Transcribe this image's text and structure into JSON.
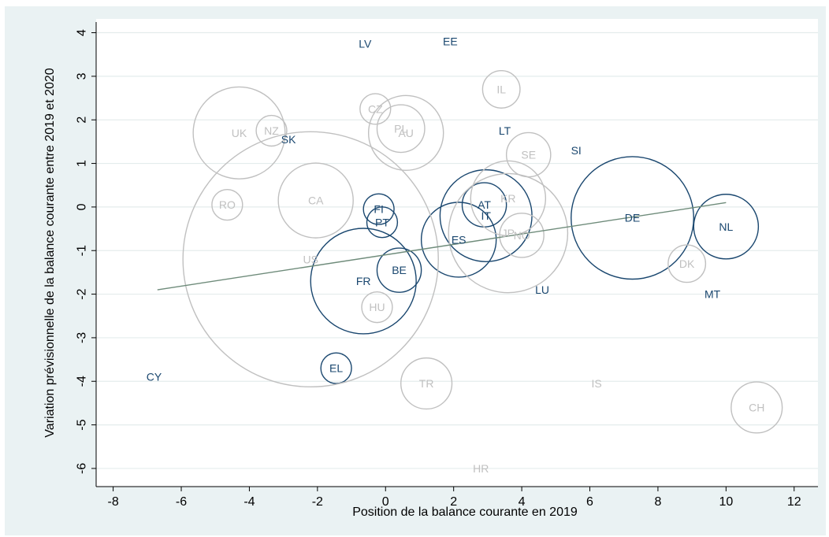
{
  "chart_data": {
    "type": "scatter",
    "title": "",
    "xlabel": "Position de la balance courante en 2019",
    "ylabel": "Variation prévisionnelle de la balance courante entre 2019 et 2020",
    "xlim": [
      -8.5,
      12.7
    ],
    "ylim": [
      -6.2,
      4.1
    ],
    "x_ticks": [
      -8,
      -6,
      -4,
      -2,
      0,
      2,
      4,
      6,
      8,
      10,
      12
    ],
    "y_ticks": [
      4,
      3,
      2,
      1,
      0,
      -1,
      -2,
      -3,
      -4,
      -5,
      -6
    ],
    "grid": true,
    "legend": "none",
    "colors": {
      "background": "#ffffff",
      "outer_background": "#eaf2f3",
      "euro_area": "#1a476f",
      "other": "#c0c0c0",
      "fit_line": "#6e8b7a",
      "grid": "#e4ecec"
    },
    "fit_line": {
      "x": [
        -6.7,
        10
      ],
      "y": [
        -1.9,
        0.1
      ]
    },
    "series": [
      {
        "name": "",
        "color": "#1a476f",
        "points": [
          {
            "label": "LV",
            "x": -0.6,
            "y": 3.75,
            "size": 0
          },
          {
            "label": "LT",
            "x": 3.5,
            "y": 1.75,
            "size": 0
          },
          {
            "label": "EE",
            "x": 1.9,
            "y": 3.8,
            "size": 0
          },
          {
            "label": "SK",
            "x": -2.85,
            "y": 1.55,
            "size": 0
          },
          {
            "label": "SI",
            "x": 5.6,
            "y": 1.3,
            "size": 0
          },
          {
            "label": "FI",
            "x": -0.2,
            "y": -0.05,
            "size": 0.9
          },
          {
            "label": "PT",
            "x": -0.1,
            "y": -0.35,
            "size": 0.9
          },
          {
            "label": "AT",
            "x": 2.9,
            "y": 0.05,
            "size": 1.3
          },
          {
            "label": "IT",
            "x": 2.95,
            "y": -0.2,
            "size": 2.7
          },
          {
            "label": "ES",
            "x": 2.15,
            "y": -0.75,
            "size": 2.2
          },
          {
            "label": "DE",
            "x": 7.25,
            "y": -0.25,
            "size": 3.6
          },
          {
            "label": "NL",
            "x": 10.0,
            "y": -0.45,
            "size": 1.9
          },
          {
            "label": "BE",
            "x": 0.4,
            "y": -1.45,
            "size": 1.3
          },
          {
            "label": "FR",
            "x": -0.65,
            "y": -1.7,
            "size": 3.1
          },
          {
            "label": "LU",
            "x": 4.6,
            "y": -1.9,
            "size": 0
          },
          {
            "label": "MT",
            "x": 9.6,
            "y": -2.0,
            "size": 0
          },
          {
            "label": "EL",
            "x": -1.45,
            "y": -3.7,
            "size": 0.9
          },
          {
            "label": "CY",
            "x": -6.8,
            "y": -3.9,
            "size": 0
          }
        ]
      },
      {
        "name": "",
        "color": "#c0c0c0",
        "points": [
          {
            "label": "IL",
            "x": 3.4,
            "y": 2.7,
            "size": 1.1
          },
          {
            "label": "CZ",
            "x": -0.3,
            "y": 2.25,
            "size": 0.9
          },
          {
            "label": "NZ",
            "x": -3.35,
            "y": 1.75,
            "size": 0.9
          },
          {
            "label": "UK",
            "x": -4.3,
            "y": 1.7,
            "size": 2.7
          },
          {
            "label": "PL",
            "x": 0.45,
            "y": 1.8,
            "size": 1.4
          },
          {
            "label": "AU",
            "x": 0.6,
            "y": 1.7,
            "size": 2.2
          },
          {
            "label": "SE",
            "x": 4.2,
            "y": 1.2,
            "size": 1.3
          },
          {
            "label": "RO",
            "x": -4.65,
            "y": 0.05,
            "size": 0.9
          },
          {
            "label": "CA",
            "x": -2.05,
            "y": 0.15,
            "size": 2.2
          },
          {
            "label": "KR",
            "x": 3.6,
            "y": 0.2,
            "size": 2.2
          },
          {
            "label": "JP",
            "x": 3.6,
            "y": -0.6,
            "size": 3.5
          },
          {
            "label": "NO",
            "x": 4.0,
            "y": -0.65,
            "size": 1.3
          },
          {
            "label": "US",
            "x": -2.2,
            "y": -1.2,
            "size": 7.5
          },
          {
            "label": "HU",
            "x": -0.25,
            "y": -2.3,
            "size": 0.9
          },
          {
            "label": "DK",
            "x": 8.85,
            "y": -1.3,
            "size": 1.1
          },
          {
            "label": "TR",
            "x": 1.2,
            "y": -4.05,
            "size": 1.5
          },
          {
            "label": "IS",
            "x": 6.2,
            "y": -4.05,
            "size": 0
          },
          {
            "label": "CH",
            "x": 10.9,
            "y": -4.6,
            "size": 1.5
          },
          {
            "label": "HR",
            "x": 2.8,
            "y": -6.0,
            "size": 0
          }
        ]
      }
    ]
  }
}
